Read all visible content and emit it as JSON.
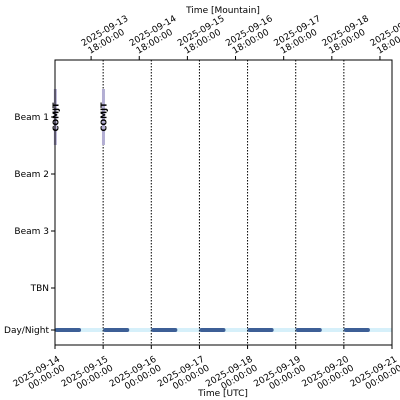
{
  "chart_data": {
    "type": "timeline",
    "xlabel_bottom": "Time [UTC]",
    "xlabel_top": "Time [Mountain]",
    "xlim": [
      "2025-09-14 00:00:00",
      "2025-09-21 00:00:00"
    ],
    "rows": [
      "Beam 1",
      "Beam 2",
      "Beam 3",
      "TBN",
      "Day/Night"
    ],
    "bottom_ticks": [
      {
        "line1": "2025-09-14",
        "line2": "00:00:00"
      },
      {
        "line1": "2025-09-15",
        "line2": "00:00:00"
      },
      {
        "line1": "2025-09-16",
        "line2": "00:00:00"
      },
      {
        "line1": "2025-09-17",
        "line2": "00:00:00"
      },
      {
        "line1": "2025-09-18",
        "line2": "00:00:00"
      },
      {
        "line1": "2025-09-19",
        "line2": "00:00:00"
      },
      {
        "line1": "2025-09-20",
        "line2": "00:00:00"
      },
      {
        "line1": "2025-09-21",
        "line2": "00:00:00"
      }
    ],
    "top_ticks": [
      {
        "line1": "2025-09-13",
        "line2": "18:00:00"
      },
      {
        "line1": "2025-09-14",
        "line2": "18:00:00"
      },
      {
        "line1": "2025-09-15",
        "line2": "18:00:00"
      },
      {
        "line1": "2025-09-16",
        "line2": "18:00:00"
      },
      {
        "line1": "2025-09-17",
        "line2": "18:00:00"
      },
      {
        "line1": "2025-09-18",
        "line2": "18:00:00"
      },
      {
        "line1": "2025-09-19",
        "line2": "18:00:00"
      },
      {
        "line1": "2025-09-20",
        "line2": "18:00:00"
      }
    ],
    "observations": [
      {
        "row": "Beam 1",
        "label": "COMJT",
        "start": "2025-09-14 00:05:00",
        "end": "2025-09-14 00:15:00"
      },
      {
        "row": "Beam 1",
        "label": "COMJT",
        "start": "2025-09-15 00:05:00",
        "end": "2025-09-15 00:15:00"
      }
    ],
    "night_bars": [
      {
        "start": "2025-09-14 01:00:00",
        "end": "2025-09-14 12:00:00"
      },
      {
        "start": "2025-09-15 01:00:00",
        "end": "2025-09-15 12:00:00"
      },
      {
        "start": "2025-09-16 01:00:00",
        "end": "2025-09-16 12:00:00"
      },
      {
        "start": "2025-09-17 01:00:00",
        "end": "2025-09-17 12:00:00"
      },
      {
        "start": "2025-09-18 01:00:00",
        "end": "2025-09-18 12:00:00"
      },
      {
        "start": "2025-09-19 01:00:00",
        "end": "2025-09-19 12:00:00"
      },
      {
        "start": "2025-09-20 01:00:00",
        "end": "2025-09-20 12:00:00"
      }
    ],
    "day_boundaries": [
      "2025-09-15 00:00:00",
      "2025-09-16 00:00:00",
      "2025-09-17 00:00:00",
      "2025-09-18 00:00:00",
      "2025-09-19 00:00:00",
      "2025-09-20 00:00:00"
    ],
    "colors": {
      "observation": "#b3aed3",
      "night_bar": "#3d5f96",
      "day_band": "#d6f0fa",
      "boundary": "#000000"
    }
  }
}
